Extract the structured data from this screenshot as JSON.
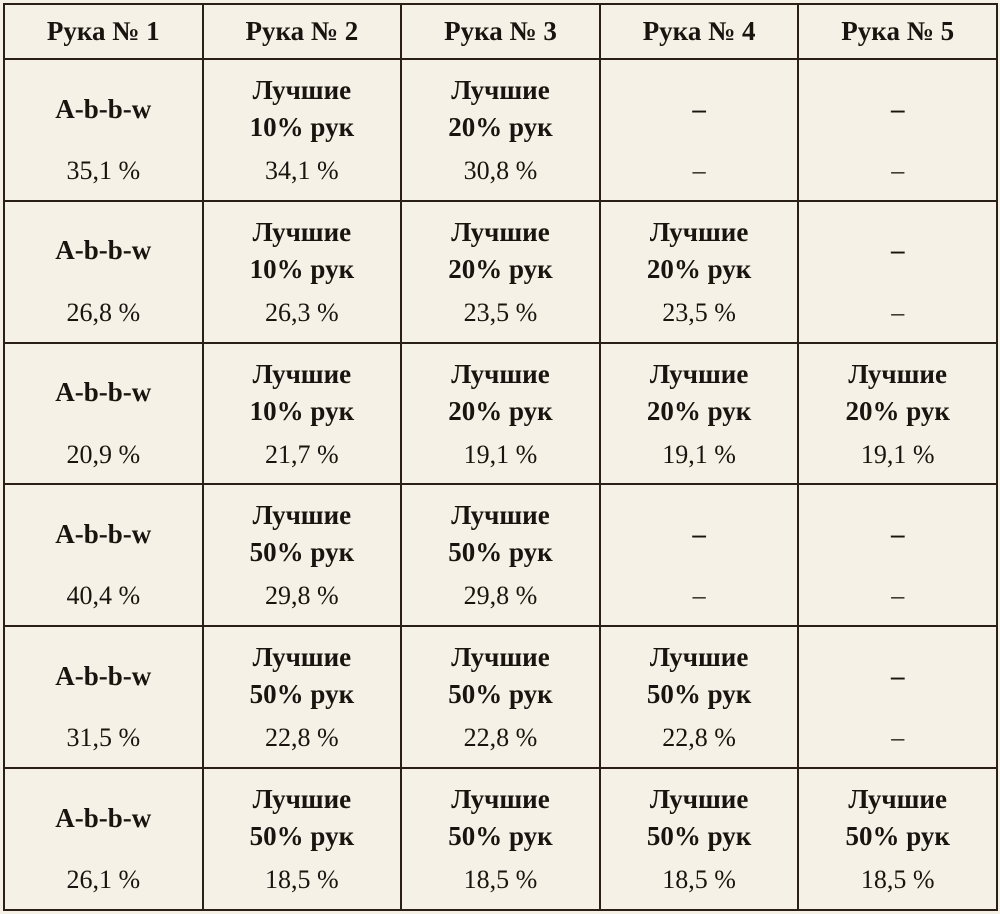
{
  "headers": [
    "Рука № 1",
    "Рука № 2",
    "Рука № 3",
    "Рука № 4",
    "Рука № 5"
  ],
  "rows": [
    {
      "cells": [
        {
          "label": "A-b-b-w",
          "value": "35,1 %"
        },
        {
          "label": "Лучшие\n10% рук",
          "value": "34,1 %"
        },
        {
          "label": "Лучшие\n20% рук",
          "value": "30,8 %"
        },
        {
          "label": "–",
          "value": "–"
        },
        {
          "label": "–",
          "value": "–"
        }
      ]
    },
    {
      "cells": [
        {
          "label": "A-b-b-w",
          "value": "26,8 %"
        },
        {
          "label": "Лучшие\n10% рук",
          "value": "26,3 %"
        },
        {
          "label": "Лучшие\n20% рук",
          "value": "23,5 %"
        },
        {
          "label": "Лучшие\n20% рук",
          "value": "23,5 %"
        },
        {
          "label": "–",
          "value": "–"
        }
      ]
    },
    {
      "cells": [
        {
          "label": "A-b-b-w",
          "value": "20,9 %"
        },
        {
          "label": "Лучшие\n10% рук",
          "value": "21,7 %"
        },
        {
          "label": "Лучшие\n20% рук",
          "value": "19,1 %"
        },
        {
          "label": "Лучшие\n20% рук",
          "value": "19,1 %"
        },
        {
          "label": "Лучшие\n20% рук",
          "value": "19,1 %"
        }
      ]
    },
    {
      "cells": [
        {
          "label": "A-b-b-w",
          "value": "40,4 %"
        },
        {
          "label": "Лучшие\n50% рук",
          "value": "29,8 %"
        },
        {
          "label": "Лучшие\n50% рук",
          "value": "29,8 %"
        },
        {
          "label": "–",
          "value": "–"
        },
        {
          "label": "–",
          "value": "–"
        }
      ]
    },
    {
      "cells": [
        {
          "label": "A-b-b-w",
          "value": "31,5 %"
        },
        {
          "label": "Лучшие\n50% рук",
          "value": "22,8 %"
        },
        {
          "label": "Лучшие\n50% рук",
          "value": "22,8 %"
        },
        {
          "label": "Лучшие\n50% рук",
          "value": "22,8 %"
        },
        {
          "label": "–",
          "value": "–"
        }
      ]
    },
    {
      "cells": [
        {
          "label": "A-b-b-w",
          "value": "26,1 %"
        },
        {
          "label": "Лучшие\n50% рук",
          "value": "18,5 %"
        },
        {
          "label": "Лучшие\n50% рук",
          "value": "18,5 %"
        },
        {
          "label": "Лучшие\n50% рук",
          "value": "18,5 %"
        },
        {
          "label": "Лучшие\n50% рук",
          "value": "18,5 %"
        }
      ]
    }
  ]
}
